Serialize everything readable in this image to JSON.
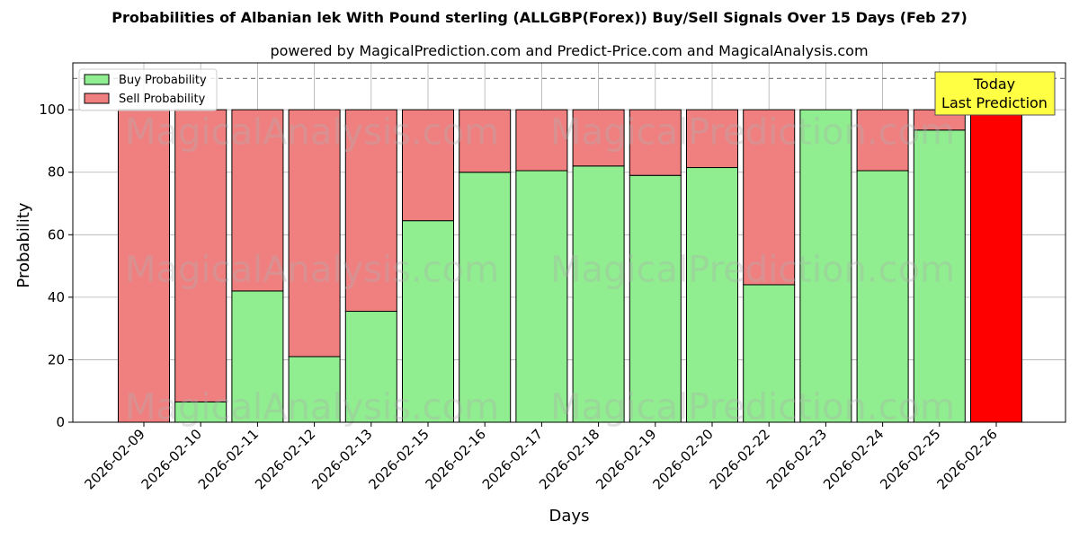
{
  "chart_data": {
    "type": "bar",
    "stacked": true,
    "title": "Probabilities of Albanian lek With Pound sterling (ALLGBP(Forex)) Buy/Sell Signals Over 15 Days (Feb 27)",
    "subtitle": "powered by MagicalPrediction.com and Predict-Price.com and MagicalAnalysis.com",
    "xlabel": "Days",
    "ylabel": "Probability",
    "ylim": [
      0,
      115
    ],
    "yticks": [
      0,
      20,
      40,
      60,
      80,
      100
    ],
    "grid": true,
    "legend_position": "top-left",
    "reference_line": 110,
    "categories": [
      "2026-02-09",
      "2026-02-10",
      "2026-02-11",
      "2026-02-12",
      "2026-02-13",
      "2026-02-15",
      "2026-02-16",
      "2026-02-17",
      "2026-02-18",
      "2026-02-19",
      "2026-02-20",
      "2026-02-22",
      "2026-02-23",
      "2026-02-24",
      "2026-02-25",
      "2026-02-26"
    ],
    "series": [
      {
        "name": "Buy Probability",
        "color": "#90ee90",
        "values": [
          0,
          6.5,
          42,
          21,
          35.5,
          64.5,
          80,
          80.5,
          82,
          79,
          81.5,
          44,
          100,
          80.5,
          93.5,
          0
        ]
      },
      {
        "name": "Sell Probability",
        "color": "#f08080",
        "values": [
          100,
          93.5,
          58,
          79,
          64.5,
          35.5,
          20,
          19.5,
          18,
          21,
          18.5,
          56,
          0,
          19.5,
          6.5,
          100
        ]
      }
    ],
    "highlight": {
      "category": "2026-02-26",
      "color": "#ff0000"
    },
    "annotation": {
      "line1": "Today",
      "line2": "Last Prediction",
      "background": "#ffff44"
    },
    "watermarks": [
      "MagicalAnalysis.com",
      "MagicalPrediction.com"
    ]
  }
}
